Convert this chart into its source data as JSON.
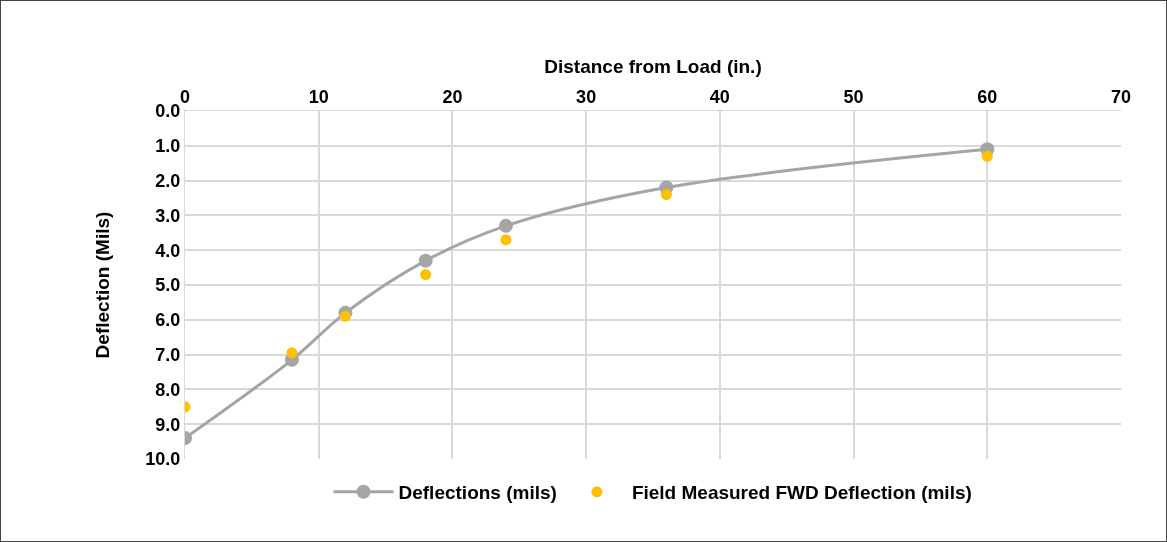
{
  "chart_data": {
    "type": "line",
    "xlabel": "Distance from Load (in.)",
    "ylabel": "Deflection (Mils)",
    "x": [
      0,
      8,
      12,
      18,
      24,
      36,
      60
    ],
    "series": [
      {
        "name": "Deflections (mils)",
        "color": "#a5a5a5",
        "values": [
          9.4,
          7.15,
          5.8,
          4.3,
          3.3,
          2.2,
          1.1
        ]
      },
      {
        "name": "Field Measured FWD Deflection (mils)",
        "type": "scatter",
        "color": "#ffc000",
        "values": [
          8.5,
          6.95,
          5.9,
          4.7,
          3.7,
          2.4,
          1.3
        ]
      }
    ],
    "xlim": [
      0,
      70
    ],
    "xticks": [
      0,
      10,
      20,
      30,
      40,
      50,
      60,
      70
    ],
    "ylim": [
      10,
      0
    ],
    "yticks": [
      {
        "value": 0,
        "label": "0.0"
      },
      {
        "value": 1,
        "label": "1.0"
      },
      {
        "value": 2,
        "label": "2.0"
      },
      {
        "value": 3,
        "label": "3.0"
      },
      {
        "value": 4,
        "label": "4.0"
      },
      {
        "value": 5,
        "label": "5.0"
      },
      {
        "value": 6,
        "label": "6.0"
      },
      {
        "value": 7,
        "label": "7.0"
      },
      {
        "value": 8,
        "label": "8.0"
      },
      {
        "value": 9,
        "label": "9.0"
      },
      {
        "value": 10,
        "label": "10.0"
      }
    ],
    "grid": true,
    "legend": "bottom",
    "marker": "circle",
    "line_style": "solid"
  }
}
